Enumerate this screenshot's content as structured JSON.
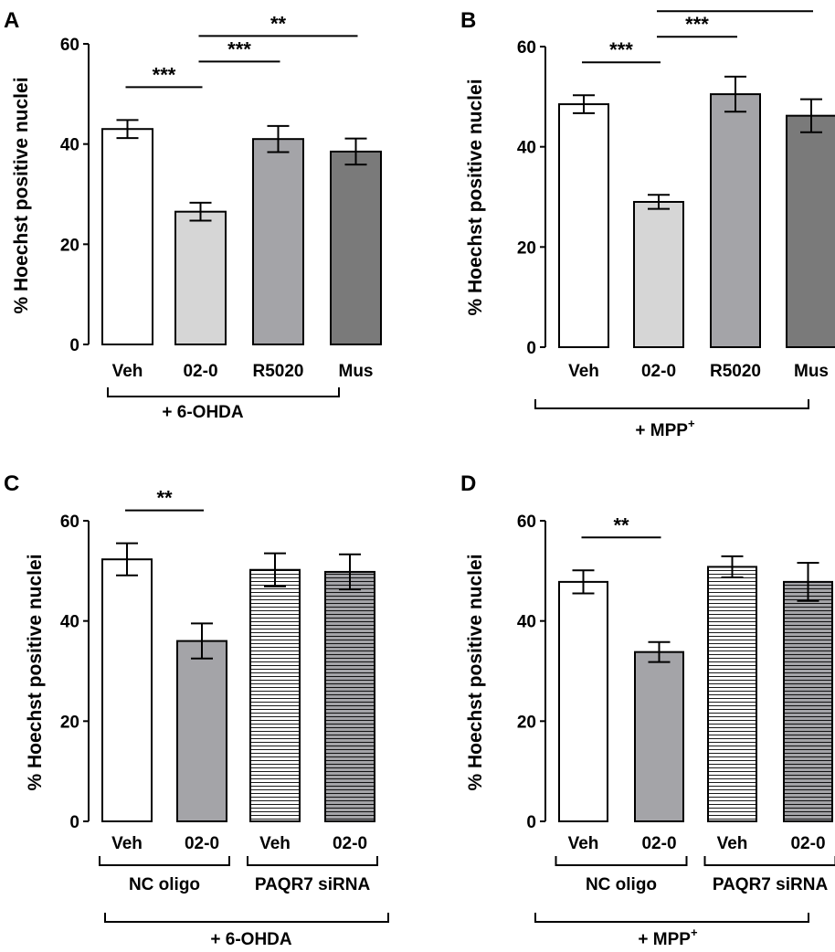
{
  "chart_data": [
    {
      "panel_label": "A",
      "type": "bar",
      "ylabel": "% Hoechst positive nuclei",
      "ylim": [
        0,
        60
      ],
      "yticks": [
        0,
        20,
        40,
        60
      ],
      "categories": [
        "Veh",
        "02-0",
        "R5020",
        "Mus"
      ],
      "values": [
        43,
        26.5,
        41,
        38.5
      ],
      "errors": [
        1.8,
        1.8,
        2.6,
        2.6
      ],
      "fill_colors": [
        "#ffffff",
        "#d6d6d6",
        "#a4a4a8",
        "#7a7a7a"
      ],
      "patterns": [
        "none",
        "none",
        "none",
        "none"
      ],
      "significance": [
        {
          "from": 0,
          "to": 1,
          "label": "***"
        },
        {
          "from": 1,
          "to": 2,
          "label": "***"
        },
        {
          "from": 1,
          "to": 3,
          "label": "**"
        }
      ],
      "groups": [],
      "treatment": {
        "label": "+ 6-OHDA",
        "superscript": ""
      }
    },
    {
      "panel_label": "B",
      "type": "bar",
      "ylabel": "% Hoechst positive nuclei",
      "ylim": [
        0,
        60
      ],
      "yticks": [
        0,
        20,
        40,
        60
      ],
      "categories": [
        "Veh",
        "02-0",
        "R5020",
        "Mus"
      ],
      "values": [
        48.5,
        29,
        50.5,
        46.2
      ],
      "errors": [
        1.8,
        1.4,
        3.5,
        3.3
      ],
      "fill_colors": [
        "#ffffff",
        "#d6d6d6",
        "#a4a4a8",
        "#7a7a7a"
      ],
      "patterns": [
        "none",
        "none",
        "none",
        "none"
      ],
      "significance": [
        {
          "from": 0,
          "to": 1,
          "label": "***"
        },
        {
          "from": 1,
          "to": 2,
          "label": "***"
        },
        {
          "from": 1,
          "to": 3,
          "label": "***"
        }
      ],
      "groups": [],
      "treatment": {
        "label": "+ MPP",
        "superscript": "+"
      }
    },
    {
      "panel_label": "C",
      "type": "bar",
      "ylabel": "% Hoechst positive nuclei",
      "ylim": [
        0,
        60
      ],
      "yticks": [
        0,
        20,
        40,
        60
      ],
      "categories": [
        "Veh",
        "02-0",
        "Veh",
        "02-0"
      ],
      "values": [
        52.3,
        36,
        50.2,
        49.8
      ],
      "errors": [
        3.2,
        3.5,
        3.3,
        3.5
      ],
      "fill_colors": [
        "#ffffff",
        "#a4a4a8",
        "#ffffff",
        "#a4a4a8"
      ],
      "patterns": [
        "none",
        "none",
        "hlines",
        "hlines"
      ],
      "significance": [
        {
          "from": 0,
          "to": 1,
          "label": "**"
        }
      ],
      "groups": [
        {
          "label": "NC oligo",
          "from": 0,
          "to": 1
        },
        {
          "label": "PAQR7 siRNA",
          "from": 2,
          "to": 3
        }
      ],
      "treatment": {
        "label": "+ 6-OHDA",
        "superscript": ""
      }
    },
    {
      "panel_label": "D",
      "type": "bar",
      "ylabel": "% Hoechst positive nuclei",
      "ylim": [
        0,
        60
      ],
      "yticks": [
        0,
        20,
        40,
        60
      ],
      "categories": [
        "Veh",
        "02-0",
        "Veh",
        "02-0"
      ],
      "values": [
        47.8,
        33.8,
        50.8,
        47.8
      ],
      "errors": [
        2.3,
        2,
        2.1,
        3.8
      ],
      "fill_colors": [
        "#ffffff",
        "#a4a4a8",
        "#ffffff",
        "#a4a4a8"
      ],
      "patterns": [
        "none",
        "none",
        "hlines",
        "hlines"
      ],
      "significance": [
        {
          "from": 0,
          "to": 1,
          "label": "**"
        }
      ],
      "groups": [
        {
          "label": "NC oligo",
          "from": 0,
          "to": 1
        },
        {
          "label": "PAQR7 siRNA",
          "from": 2,
          "to": 3
        }
      ],
      "treatment": {
        "label": "+ MPP",
        "superscript": "+"
      }
    }
  ]
}
